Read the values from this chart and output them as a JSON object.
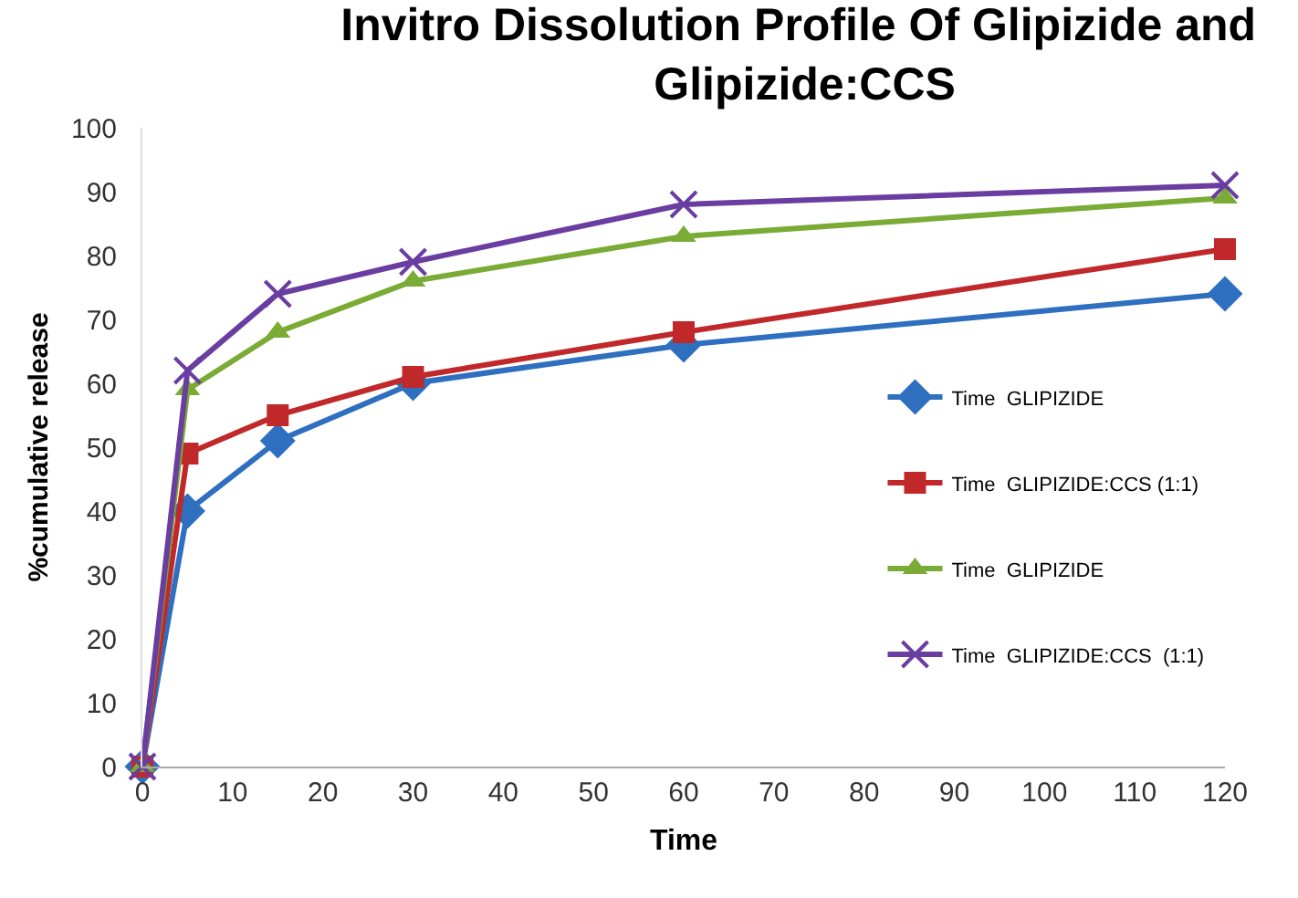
{
  "chart_data": {
    "type": "line",
    "title": "Invitro Dissolution Profile Of Glipizide and Glipizide:CCS",
    "xlabel": "Time",
    "ylabel": "%cumulative release",
    "x": [
      0,
      5,
      15,
      30,
      60,
      120
    ],
    "xlim": [
      0,
      120
    ],
    "xticks": [
      0,
      10,
      20,
      30,
      40,
      50,
      60,
      70,
      80,
      90,
      100,
      110,
      120
    ],
    "ylim": [
      0,
      100
    ],
    "yticks": [
      0,
      10,
      20,
      30,
      40,
      50,
      60,
      70,
      80,
      90,
      100
    ],
    "grid": false,
    "legend": "right",
    "line_style": "solid",
    "series": [
      {
        "name": "Time  GLIPIZIDE",
        "color": "#2e6fc0",
        "marker": "diamond",
        "values": [
          0,
          40,
          51,
          60,
          66,
          74
        ]
      },
      {
        "name": "Time  GLIPIZIDE:CCS (1:1)",
        "color": "#c0282a",
        "marker": "square",
        "values": [
          0,
          49,
          55,
          61,
          68,
          81
        ]
      },
      {
        "name": "Time  GLIPIZIDE",
        "color": "#7aab35",
        "marker": "triangle",
        "values": [
          0,
          59,
          68,
          76,
          83,
          89
        ]
      },
      {
        "name": "Time  GLIPIZIDE:CCS  (1:1)",
        "color": "#6a3da0",
        "marker": "cross",
        "values": [
          0,
          62,
          74,
          79,
          88,
          91
        ]
      }
    ]
  }
}
